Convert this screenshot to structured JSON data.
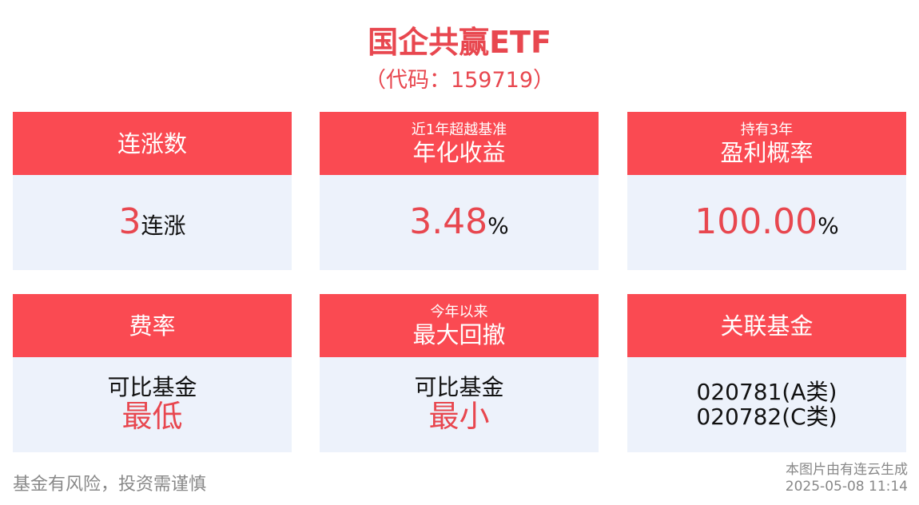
{
  "header": {
    "title": "国企共赢ETF",
    "subtitle": "（代码：159719）"
  },
  "cards": [
    {
      "sublabel": null,
      "label": "连涨数",
      "lines": [
        [
          {
            "text": "3",
            "accent": true,
            "size": "big"
          },
          {
            "text": "连涨",
            "accent": false,
            "size": "mid"
          }
        ]
      ]
    },
    {
      "sublabel": "近1年超越基准",
      "label": "年化收益",
      "lines": [
        [
          {
            "text": "3.48",
            "accent": true,
            "size": "big"
          },
          {
            "text": "%",
            "accent": false,
            "size": "mid"
          }
        ]
      ]
    },
    {
      "sublabel": "持有3年",
      "label": "盈利概率",
      "lines": [
        [
          {
            "text": "100.00",
            "accent": true,
            "size": "big"
          },
          {
            "text": "%",
            "accent": false,
            "size": "mid"
          }
        ]
      ]
    },
    {
      "sublabel": null,
      "label": "费率",
      "lines": [
        [
          {
            "text": "可比基金",
            "accent": false,
            "size": "mid"
          }
        ],
        [
          {
            "text": "最低",
            "accent": true,
            "size": "large"
          }
        ]
      ]
    },
    {
      "sublabel": "今年以来",
      "label": "最大回撤",
      "lines": [
        [
          {
            "text": "可比基金",
            "accent": false,
            "size": "mid"
          }
        ],
        [
          {
            "text": "最小",
            "accent": true,
            "size": "large"
          }
        ]
      ]
    },
    {
      "sublabel": null,
      "label": "关联基金",
      "lines": [
        [
          {
            "text": "020781(A类)",
            "accent": false,
            "size": "mid"
          }
        ],
        [
          {
            "text": "020782(C类)",
            "accent": false,
            "size": "mid"
          }
        ]
      ]
    }
  ],
  "footer": {
    "disclaimer": "基金有风险，投资需谨慎",
    "source": "本图片由有连云生成",
    "timestamp": "2025-05-08 11:14"
  }
}
